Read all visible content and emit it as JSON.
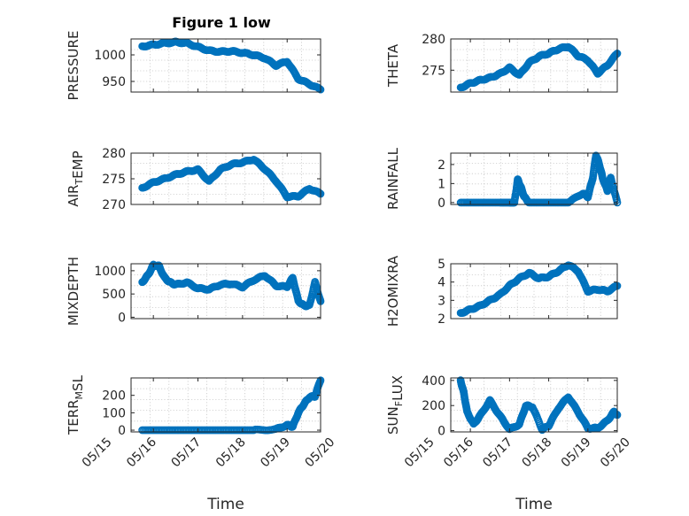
{
  "figure": {
    "title": "Figure 1 low",
    "marker_color": "#0072BD",
    "axis_color": "#262626",
    "grid": true
  },
  "chart_data": [
    {
      "type": "scatter",
      "id": "pressure",
      "ylabel_parts": [
        {
          "t": "PRESSURE"
        }
      ],
      "ylim": [
        930,
        1030
      ],
      "yticks": [
        950,
        1000
      ],
      "xlim": [
        "05/15",
        "05/20"
      ],
      "xticks": [],
      "x": [
        "05/15 18:00",
        "05/16 00:00",
        "05/16 06:00",
        "05/16 12:00",
        "05/16 18:00",
        "05/17 00:00",
        "05/17 06:00",
        "05/17 12:00",
        "05/17 18:00",
        "05/18 00:00",
        "05/18 06:00",
        "05/18 12:00",
        "05/18 18:00",
        "05/19 00:00",
        "05/19 06:00",
        "05/19 12:00",
        "05/19 18:00"
      ],
      "y": [
        1016,
        1019,
        1022,
        1024,
        1022,
        1015,
        1008,
        1006,
        1007,
        1004,
        1000,
        994,
        980,
        988,
        955,
        945,
        935
      ]
    },
    {
      "type": "scatter",
      "id": "theta",
      "ylabel_parts": [
        {
          "t": "THETA"
        }
      ],
      "ylim": [
        271.5,
        280
      ],
      "yticks": [
        275,
        280
      ],
      "xlim": [
        "05/15",
        "05/20"
      ],
      "xticks": [],
      "x": [
        "05/15 18:00",
        "05/16 00:00",
        "05/16 06:00",
        "05/16 12:00",
        "05/16 18:00",
        "05/17 00:00",
        "05/17 06:00",
        "05/17 12:00",
        "05/17 18:00",
        "05/18 00:00",
        "05/18 06:00",
        "05/18 12:00",
        "05/18 18:00",
        "05/19 00:00",
        "05/19 06:00",
        "05/19 12:00",
        "05/19 18:00"
      ],
      "y": [
        272.2,
        272.9,
        273.4,
        273.8,
        274.4,
        275.4,
        274.2,
        276.2,
        277.2,
        277.7,
        278.4,
        278.8,
        277.3,
        276.6,
        274.5,
        275.8,
        277.7
      ]
    },
    {
      "type": "scatter",
      "id": "air_temp",
      "ylabel_parts": [
        {
          "t": "AIR"
        },
        {
          "t": "T",
          "sub": true
        },
        {
          "t": "EMP"
        }
      ],
      "ylim": [
        270,
        280
      ],
      "yticks": [
        270,
        275,
        280
      ],
      "xlim": [
        "05/15",
        "05/20"
      ],
      "xticks": [],
      "x": [
        "05/15 18:00",
        "05/16 00:00",
        "05/16 06:00",
        "05/16 12:00",
        "05/16 18:00",
        "05/17 00:00",
        "05/17 06:00",
        "05/17 12:00",
        "05/17 18:00",
        "05/18 00:00",
        "05/18 06:00",
        "05/18 12:00",
        "05/18 18:00",
        "05/19 00:00",
        "05/19 06:00",
        "05/19 12:00",
        "05/19 18:00"
      ],
      "y": [
        273.2,
        274.3,
        275.0,
        275.8,
        276.4,
        276.8,
        274.5,
        276.8,
        277.8,
        278.2,
        278.8,
        276.9,
        274.6,
        271.5,
        271.6,
        273.1,
        272.1
      ]
    },
    {
      "type": "scatter",
      "id": "rainfall",
      "ylabel_parts": [
        {
          "t": "RAINFALL"
        }
      ],
      "ylim": [
        -0.1,
        2.6
      ],
      "yticks": [
        0,
        1,
        2
      ],
      "xlim": [
        "05/15",
        "05/20"
      ],
      "xticks": [],
      "x": [
        "05/15 18:00",
        "05/16 06:00",
        "05/16 18:00",
        "05/17 00:00",
        "05/17 03:00",
        "05/17 05:00",
        "05/17 07:00",
        "05/17 09:00",
        "05/17 12:00",
        "05/18 00:00",
        "05/18 12:00",
        "05/18 21:00",
        "05/19 00:00",
        "05/19 03:00",
        "05/19 05:00",
        "05/19 07:00",
        "05/19 09:00",
        "05/19 12:00",
        "05/19 14:00",
        "05/19 18:00"
      ],
      "y": [
        0,
        0,
        0,
        0,
        0,
        1.2,
        0.8,
        0.3,
        0,
        0,
        0,
        0.5,
        0.3,
        1.3,
        2.5,
        2.0,
        1.3,
        0.6,
        1.3,
        0
      ]
    },
    {
      "type": "scatter",
      "id": "mixdepth",
      "ylabel_parts": [
        {
          "t": "MIXDEPTH"
        }
      ],
      "ylim": [
        -30,
        1150
      ],
      "yticks": [
        0,
        500,
        1000
      ],
      "xlim": [
        "05/15",
        "05/20"
      ],
      "xticks": [],
      "x": [
        "05/15 18:00",
        "05/15 21:00",
        "05/16 00:00",
        "05/16 03:00",
        "05/16 06:00",
        "05/16 09:00",
        "05/16 12:00",
        "05/16 18:00",
        "05/17 00:00",
        "05/17 06:00",
        "05/17 12:00",
        "05/17 18:00",
        "05/18 00:00",
        "05/18 06:00",
        "05/18 12:00",
        "05/18 18:00",
        "05/19 00:00",
        "05/19 03:00",
        "05/19 06:00",
        "05/19 09:00",
        "05/19 12:00",
        "05/19 15:00",
        "05/19 18:00"
      ],
      "y": [
        750,
        900,
        1120,
        1100,
        850,
        750,
        700,
        750,
        620,
        600,
        700,
        720,
        650,
        800,
        900,
        680,
        650,
        850,
        350,
        250,
        250,
        750,
        330
      ]
    },
    {
      "type": "scatter",
      "id": "h2omixra",
      "ylabel_parts": [
        {
          "t": "H2OMIXRA"
        }
      ],
      "ylim": [
        2,
        5
      ],
      "yticks": [
        2,
        3,
        4,
        5
      ],
      "xlim": [
        "05/15",
        "05/20"
      ],
      "xticks": [],
      "x": [
        "05/15 18:00",
        "05/16 00:00",
        "05/16 06:00",
        "05/16 12:00",
        "05/16 18:00",
        "05/17 00:00",
        "05/17 06:00",
        "05/17 12:00",
        "05/17 18:00",
        "05/18 00:00",
        "05/18 06:00",
        "05/18 12:00",
        "05/18 18:00",
        "05/19 00:00",
        "05/19 06:00",
        "05/19 12:00",
        "05/19 18:00"
      ],
      "y": [
        2.3,
        2.5,
        2.7,
        3.0,
        3.3,
        3.8,
        4.2,
        4.5,
        4.2,
        4.3,
        4.6,
        4.95,
        4.6,
        3.5,
        3.6,
        3.5,
        3.8
      ]
    },
    {
      "type": "scatter",
      "id": "terr_msl",
      "ylabel_parts": [
        {
          "t": "TERR"
        },
        {
          "t": "M",
          "sub": true
        },
        {
          "t": "SL"
        }
      ],
      "ylim": [
        -10,
        300
      ],
      "yticks": [
        0,
        100,
        200
      ],
      "xlim": [
        "05/15",
        "05/20"
      ],
      "xticks": [
        "05/15",
        "05/16",
        "05/17",
        "05/18",
        "05/19",
        "05/20"
      ],
      "xlabel": "Time",
      "x": [
        "05/15 18:00",
        "05/16 06:00",
        "05/16 18:00",
        "05/17 06:00",
        "05/17 18:00",
        "05/18 06:00",
        "05/18 18:00",
        "05/19 00:00",
        "05/19 03:00",
        "05/19 06:00",
        "05/19 09:00",
        "05/19 12:00",
        "05/19 15:00",
        "05/19 18:00"
      ],
      "y": [
        0,
        0,
        0,
        0,
        0,
        0,
        5,
        30,
        20,
        100,
        150,
        190,
        195,
        290
      ]
    },
    {
      "type": "scatter",
      "id": "sun_flux",
      "ylabel_parts": [
        {
          "t": "SUN"
        },
        {
          "t": "F",
          "sub": true
        },
        {
          "t": "LUX"
        }
      ],
      "ylim": [
        -10,
        420
      ],
      "yticks": [
        0,
        200,
        400
      ],
      "xlim": [
        "05/15",
        "05/20"
      ],
      "xticks": [
        "05/15",
        "05/16",
        "05/17",
        "05/18",
        "05/19",
        "05/20"
      ],
      "xlabel": "Time",
      "x": [
        "05/15 18:00",
        "05/15 20:00",
        "05/15 22:00",
        "05/16 02:00",
        "05/16 06:00",
        "05/16 12:00",
        "05/16 18:00",
        "05/17 00:00",
        "05/17 06:00",
        "05/17 10:00",
        "05/17 14:00",
        "05/17 20:00",
        "05/18 00:00",
        "05/18 06:00",
        "05/18 12:00",
        "05/18 18:00",
        "05/19 00:00",
        "05/19 06:00",
        "05/19 12:00",
        "05/19 16:00",
        "05/19 18:00"
      ],
      "y": [
        400,
        300,
        150,
        50,
        120,
        240,
        120,
        10,
        50,
        200,
        190,
        10,
        40,
        180,
        270,
        150,
        20,
        20,
        80,
        150,
        120
      ]
    }
  ]
}
